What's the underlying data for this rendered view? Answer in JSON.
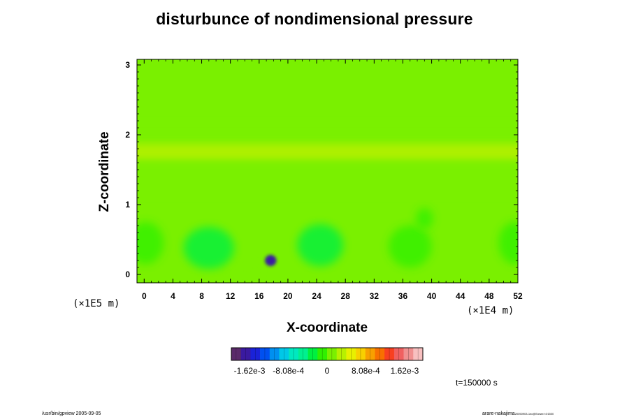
{
  "chart_data": {
    "type": "heatmap",
    "title": "disturbunce of nondimensional pressure",
    "xlabel": "X-coordinate",
    "ylabel": "Z-coordinate",
    "x_unit_label": "(×1E4 m)",
    "y_unit_label": "(×1E5 m)",
    "xlim": [
      -1,
      52
    ],
    "ylim": [
      -0.12,
      3.08
    ],
    "x_ticks": [
      0,
      4,
      8,
      12,
      16,
      20,
      24,
      28,
      32,
      36,
      40,
      44,
      48,
      52
    ],
    "x_tick_labels": [
      "0",
      "4",
      "8",
      "12",
      "16",
      "20",
      "24",
      "28",
      "32",
      "36",
      "40",
      "44",
      "48",
      "52"
    ],
    "y_ticks": [
      0,
      1,
      2,
      3
    ],
    "y_tick_labels": [
      "0",
      "1",
      "2",
      "3"
    ],
    "background_value": 0,
    "bands": [
      {
        "z_center": 1.75,
        "z_halfwidth": 0.12,
        "value": 0.0003
      },
      {
        "z_center": 1.35,
        "z_halfwidth": 0.25,
        "value": 0.00012
      },
      {
        "z_center": 2.1,
        "z_halfwidth": 0.1,
        "value": 8e-05
      }
    ],
    "features": [
      {
        "x": 17.6,
        "z": 0.2,
        "value": -0.00162,
        "radius_x": 0.8,
        "radius_z": 0.08
      },
      {
        "x": 24.5,
        "z": 0.42,
        "value": -0.00035,
        "radius_x": 3.2,
        "radius_z": 0.3
      },
      {
        "x": 9.0,
        "z": 0.38,
        "value": -0.00022,
        "radius_x": 3.5,
        "radius_z": 0.3
      },
      {
        "x": 37.0,
        "z": 0.4,
        "value": -0.0002,
        "radius_x": 3.0,
        "radius_z": 0.3
      },
      {
        "x": 0.2,
        "z": 0.45,
        "value": -0.0002,
        "radius_x": 2.5,
        "radius_z": 0.3
      },
      {
        "x": 51.5,
        "z": 0.45,
        "value": -0.0002,
        "radius_x": 2.2,
        "radius_z": 0.3
      },
      {
        "x": 39.0,
        "z": 0.8,
        "value": -0.00015,
        "radius_x": 1.2,
        "radius_z": 0.15
      },
      {
        "x": 14.0,
        "z": 0.05,
        "value": 0.00012,
        "radius_x": 2.0,
        "radius_z": 0.1
      }
    ],
    "colorbar": {
      "min": -0.002,
      "max": 0.002,
      "colors": [
        "#5a2a6a",
        "#3a1aa0",
        "#1a22d8",
        "#0050f0",
        "#0090f0",
        "#00c8e8",
        "#00e8c0",
        "#00f090",
        "#00f040",
        "#30f000",
        "#7af000",
        "#b8f000",
        "#e8f000",
        "#f8d000",
        "#f8a000",
        "#f87000",
        "#f84020",
        "#f06060",
        "#f09090",
        "#f8c0c0"
      ],
      "tick_values": [
        -0.00162,
        -0.000808,
        0,
        0.000808,
        0.00162
      ],
      "tick_labels": [
        "-1.62e-3",
        "-8.08e-4",
        "0",
        "8.08e-4",
        "1.62e-3"
      ]
    }
  },
  "annotations": {
    "time_label": "t=150000 s",
    "footer_left": "/usr/bin/gpview 2005-09-05",
    "footer_right": "arare-nakajima",
    "footer_right_small": "20050903-1nc@Eower/=01500"
  }
}
